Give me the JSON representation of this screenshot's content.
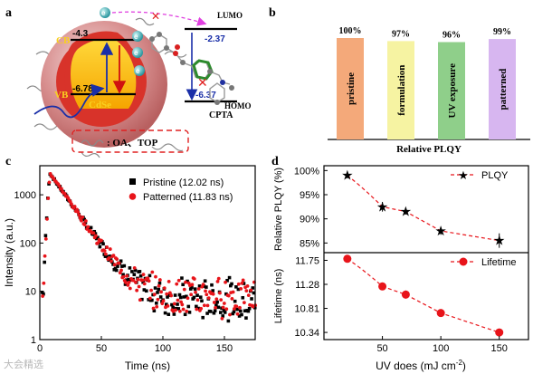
{
  "panels": {
    "a": {
      "label": "a",
      "cb": "CB",
      "vb": "VB",
      "cdse": "CdSe",
      "cb_energy": "-4.3",
      "vb_energy": "-6.78",
      "electron": "e",
      "electron_sup": "-",
      "lumo": "LUMO",
      "homo": "HOMO",
      "lumo_energy": "-2.37",
      "homo_energy": "-6.37",
      "molecule": "CPTA",
      "ligands": ": OA、TOP"
    },
    "b": {
      "label": "b"
    },
    "c": {
      "label": "c"
    },
    "d": {
      "label": "d"
    }
  },
  "chart_data": [
    {
      "id": "b",
      "type": "bar",
      "categories": [
        "pristine",
        "formulation",
        "UV exposure",
        "patterned"
      ],
      "values": [
        100,
        97,
        96,
        99
      ],
      "value_labels": [
        "100%",
        "97%",
        "96%",
        "99%"
      ],
      "xlabel": "Relative PLQY",
      "colors": [
        "#f4a97a",
        "#f6f3a2",
        "#8fcf8a",
        "#d7b6f0"
      ]
    },
    {
      "id": "c",
      "type": "scatter",
      "xlabel": "Time (ns)",
      "ylabel": "Intensity (a.u.)",
      "xlim": [
        0,
        175
      ],
      "ylim": [
        1,
        4000
      ],
      "yscale": "log",
      "xticks": [
        0,
        50,
        100,
        150
      ],
      "yticks": [
        1,
        10,
        100,
        1000
      ],
      "series": [
        {
          "name": "Pristine (12.02 ns)",
          "color": "#000000",
          "marker": "square",
          "peak_x": 8,
          "peak_y": 2800,
          "tau": 12.02,
          "floor": 7
        },
        {
          "name": "Patterned (11.83 ns)",
          "color": "#e8141a",
          "marker": "circle",
          "peak_x": 8,
          "peak_y": 2800,
          "tau": 11.83,
          "floor": 8
        }
      ],
      "legend": "top-right"
    },
    {
      "id": "d-top",
      "type": "line",
      "ylabel": "Relative  PLQY (%)",
      "x": [
        20,
        50,
        70,
        100,
        150
      ],
      "xlim": [
        0,
        175
      ],
      "ylim": [
        83,
        101
      ],
      "yticks": [
        85,
        90,
        95,
        100
      ],
      "ytick_labels": [
        "85%",
        "90%",
        "95%",
        "100%"
      ],
      "series": [
        {
          "name": "PLQY",
          "values": [
            99,
            92.5,
            91.5,
            87.5,
            85.5
          ],
          "errors": [
            0.6,
            1.0,
            0.6,
            0.8,
            1.5
          ],
          "marker": "star",
          "color": "#e8141a"
        }
      ],
      "legend": "top-right"
    },
    {
      "id": "d-bottom",
      "type": "line",
      "ylabel": "Lifetime (ns)",
      "xlabel": "UV does (mJ cm",
      "xlabel_sup": "-2",
      "xlabel_end": ")",
      "x": [
        20,
        50,
        70,
        100,
        150
      ],
      "xlim": [
        0,
        175
      ],
      "ylim": [
        10.2,
        11.9
      ],
      "xticks": [
        50,
        100,
        150
      ],
      "yticks": [
        10.34,
        10.81,
        11.28,
        11.75
      ],
      "ytick_labels": [
        "10.34",
        "10.81",
        "11.28",
        "11.75"
      ],
      "series": [
        {
          "name": "Lifetime",
          "values": [
            11.78,
            11.24,
            11.08,
            10.72,
            10.34
          ],
          "errors": [
            0.07,
            0.05,
            0.08,
            0.05,
            0.06
          ],
          "marker": "circle",
          "color": "#e8141a"
        }
      ],
      "legend": "top-right"
    }
  ],
  "watermark": "大会精选"
}
